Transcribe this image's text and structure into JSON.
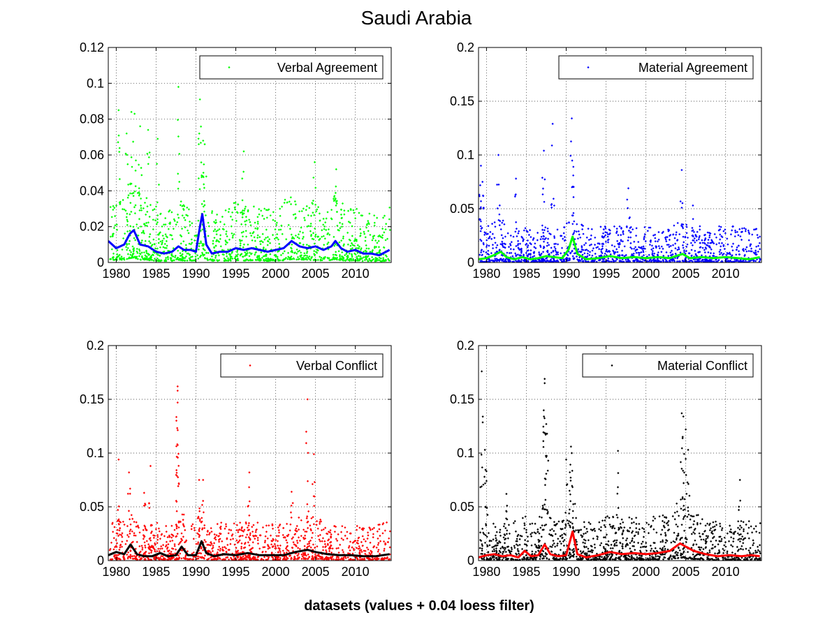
{
  "figure": {
    "title": "Saudi Arabia",
    "xlabel": "datasets (values + 0.04 loess filter)"
  },
  "chart_data": [
    {
      "type": "scatter",
      "legend": "Verbal Agreement",
      "legend_position": "top-right",
      "point_color": "#00ff00",
      "smooth_color": "#0000ff",
      "grid": true,
      "xlim": [
        1979,
        2014.5
      ],
      "ylim": [
        0,
        0.12
      ],
      "xticks": [
        1980,
        1985,
        1990,
        1995,
        2000,
        2005,
        2010
      ],
      "yticks": [
        0,
        0.02,
        0.04,
        0.06,
        0.08,
        0.1,
        0.12
      ],
      "ytick_labels": [
        "0",
        "0.02",
        "0.04",
        "0.06",
        "0.08",
        "0.1",
        "0.12"
      ],
      "noise": {
        "base": 0.0065,
        "spread": 0.02,
        "count": 1300
      },
      "outliers": [
        [
          1980.3,
          0.085
        ],
        [
          1981.3,
          0.072
        ],
        [
          1981.9,
          0.084
        ],
        [
          1982.3,
          0.083
        ],
        [
          1983.0,
          0.076
        ],
        [
          1984.0,
          0.074
        ],
        [
          1985.2,
          0.069
        ],
        [
          1987.8,
          0.098
        ],
        [
          1990.5,
          0.091
        ],
        [
          1990.9,
          0.068
        ],
        [
          1991.1,
          0.066
        ],
        [
          1996.0,
          0.062
        ],
        [
          2004.9,
          0.056
        ],
        [
          2007.6,
          0.052
        ]
      ],
      "smooth": {
        "x": [
          1979,
          1980,
          1981,
          1981.7,
          1982.2,
          1983,
          1984,
          1985,
          1986,
          1987,
          1987.8,
          1988.5,
          1989.3,
          1990,
          1990.5,
          1990.8,
          1991.3,
          1992,
          1993,
          1994,
          1995,
          1996,
          1997,
          1998,
          1999,
          2000,
          2001,
          2002,
          2003,
          2004,
          2005,
          2006,
          2007,
          2007.5,
          2008.2,
          2009,
          2010,
          2011,
          2012,
          2013,
          2014.3
        ],
        "y": [
          0.012,
          0.008,
          0.01,
          0.016,
          0.018,
          0.01,
          0.009,
          0.006,
          0.005,
          0.006,
          0.009,
          0.007,
          0.007,
          0.006,
          0.02,
          0.027,
          0.01,
          0.005,
          0.006,
          0.006,
          0.008,
          0.007,
          0.008,
          0.007,
          0.006,
          0.007,
          0.008,
          0.012,
          0.009,
          0.008,
          0.009,
          0.007,
          0.009,
          0.012,
          0.008,
          0.006,
          0.007,
          0.005,
          0.005,
          0.004,
          0.007
        ]
      }
    },
    {
      "type": "scatter",
      "legend": "Material Agreement",
      "legend_position": "top-right",
      "point_color": "#0000ff",
      "smooth_color": "#00ff00",
      "grid": true,
      "xlim": [
        1979,
        2014.5
      ],
      "ylim": [
        0,
        0.2
      ],
      "xticks": [
        1980,
        1985,
        1990,
        1995,
        2000,
        2005,
        2010
      ],
      "yticks": [
        0,
        0.05,
        0.1,
        0.15,
        0.2
      ],
      "ytick_labels": [
        "0",
        "0.05",
        "0.1",
        "0.15",
        "0.2"
      ],
      "noise": {
        "base": 0.004,
        "spread": 0.026,
        "count": 1300
      },
      "outliers": [
        [
          1979.3,
          0.09
        ],
        [
          1979.5,
          0.075
        ],
        [
          1981.5,
          0.1
        ],
        [
          1983.7,
          0.078
        ],
        [
          1987.2,
          0.104
        ],
        [
          1988.3,
          0.129
        ],
        [
          1990.7,
          0.134
        ],
        [
          1990.9,
          0.089
        ],
        [
          1997.8,
          0.069
        ],
        [
          2004.5,
          0.086
        ],
        [
          2005.9,
          0.053
        ],
        [
          1979.1,
          0.063
        ]
      ],
      "smooth": {
        "x": [
          1979,
          1980,
          1981,
          1981.8,
          1982.5,
          1983.5,
          1984.5,
          1985.5,
          1986.5,
          1987.5,
          1988.5,
          1989.5,
          1990.3,
          1990.8,
          1991.4,
          1992.5,
          1994,
          1995.5,
          1997,
          1998.5,
          2000,
          2001.5,
          2003,
          2004.6,
          2005.5,
          2007,
          2008.5,
          2010,
          2011.5,
          2013,
          2014.3
        ],
        "y": [
          0.003,
          0.004,
          0.007,
          0.01,
          0.005,
          0.003,
          0.005,
          0.003,
          0.004,
          0.006,
          0.005,
          0.004,
          0.012,
          0.024,
          0.008,
          0.003,
          0.004,
          0.006,
          0.004,
          0.005,
          0.004,
          0.005,
          0.004,
          0.008,
          0.004,
          0.005,
          0.004,
          0.005,
          0.004,
          0.003,
          0.005
        ]
      }
    },
    {
      "type": "scatter",
      "legend": "Verbal Conflict",
      "legend_position": "top-right",
      "point_color": "#ff0000",
      "smooth_color": "#000000",
      "grid": true,
      "xlim": [
        1979,
        2014.5
      ],
      "ylim": [
        0,
        0.2
      ],
      "xticks": [
        1980,
        1985,
        1990,
        1995,
        2000,
        2005,
        2010
      ],
      "yticks": [
        0,
        0.05,
        0.1,
        0.15,
        0.2
      ],
      "ytick_labels": [
        "0",
        "0.05",
        "0.1",
        "0.15",
        "0.2"
      ],
      "noise": {
        "base": 0.005,
        "spread": 0.026,
        "count": 1300
      },
      "outliers": [
        [
          1980.3,
          0.094
        ],
        [
          1981.6,
          0.082
        ],
        [
          1984.3,
          0.088
        ],
        [
          1987.7,
          0.162
        ],
        [
          1987.7,
          0.158
        ],
        [
          1987.7,
          0.147
        ],
        [
          1987.7,
          0.096
        ],
        [
          1990.4,
          0.075
        ],
        [
          1990.9,
          0.075
        ],
        [
          1996.7,
          0.082
        ],
        [
          2004.0,
          0.15
        ],
        [
          2004.8,
          0.099
        ],
        [
          2002.0,
          0.064
        ],
        [
          1983.5,
          0.063
        ]
      ],
      "smooth": {
        "x": [
          1979,
          1980,
          1981,
          1981.8,
          1982.6,
          1983.5,
          1984.5,
          1985.5,
          1986.5,
          1987.5,
          1988.2,
          1989,
          1990,
          1990.7,
          1991.3,
          1992.3,
          1993.5,
          1995,
          1996.5,
          1998,
          1999.5,
          2001,
          2002.5,
          2004,
          2005,
          2006.5,
          2008,
          2009.5,
          2011,
          2012.5,
          2014.3
        ],
        "y": [
          0.005,
          0.008,
          0.006,
          0.015,
          0.006,
          0.004,
          0.004,
          0.007,
          0.004,
          0.005,
          0.013,
          0.005,
          0.005,
          0.018,
          0.007,
          0.004,
          0.006,
          0.005,
          0.007,
          0.005,
          0.005,
          0.005,
          0.008,
          0.01,
          0.008,
          0.006,
          0.005,
          0.005,
          0.004,
          0.004,
          0.006
        ]
      }
    },
    {
      "type": "scatter",
      "legend": "Material Conflict",
      "legend_position": "top-right",
      "point_color": "#000000",
      "smooth_color": "#ff0000",
      "grid": true,
      "xlim": [
        1979,
        2014.5
      ],
      "ylim": [
        0,
        0.2
      ],
      "xticks": [
        1980,
        1985,
        1990,
        1995,
        2000,
        2005,
        2010
      ],
      "yticks": [
        0,
        0.05,
        0.1,
        0.15,
        0.2
      ],
      "ytick_labels": [
        "0",
        "0.05",
        "0.1",
        "0.15",
        "0.2"
      ],
      "noise": {
        "base": 0.006,
        "spread": 0.03,
        "count": 1300
      },
      "outliers": [
        [
          1979.4,
          0.176
        ],
        [
          1979.8,
          0.103
        ],
        [
          1980.0,
          0.074
        ],
        [
          1982.5,
          0.062
        ],
        [
          1987.3,
          0.169
        ],
        [
          1987.3,
          0.165
        ],
        [
          1987.5,
          0.127
        ],
        [
          1987.6,
          0.118
        ],
        [
          1990.0,
          0.094
        ],
        [
          1990.6,
          0.106
        ],
        [
          1990.7,
          0.1
        ],
        [
          1996.5,
          0.102
        ],
        [
          2004.5,
          0.137
        ],
        [
          2004.7,
          0.134
        ],
        [
          2005.0,
          0.122
        ],
        [
          2005.3,
          0.103
        ],
        [
          2011.8,
          0.075
        ]
      ],
      "smooth": {
        "x": [
          1979,
          1980,
          1981,
          1982,
          1983,
          1984,
          1984.8,
          1985.6,
          1986.5,
          1987.3,
          1988,
          1989,
          1990,
          1990.8,
          1991.4,
          1992.5,
          1994,
          1995.5,
          1997,
          1998.5,
          2000,
          2001.5,
          2003,
          2004.3,
          2005,
          2006,
          2007.5,
          2009,
          2010.5,
          2012,
          2013.2,
          2014.3
        ],
        "y": [
          0.003,
          0.005,
          0.006,
          0.004,
          0.005,
          0.003,
          0.009,
          0.004,
          0.005,
          0.015,
          0.006,
          0.004,
          0.005,
          0.027,
          0.006,
          0.003,
          0.005,
          0.008,
          0.006,
          0.007,
          0.006,
          0.007,
          0.009,
          0.016,
          0.013,
          0.009,
          0.006,
          0.004,
          0.005,
          0.004,
          0.005,
          0.004
        ]
      }
    }
  ]
}
